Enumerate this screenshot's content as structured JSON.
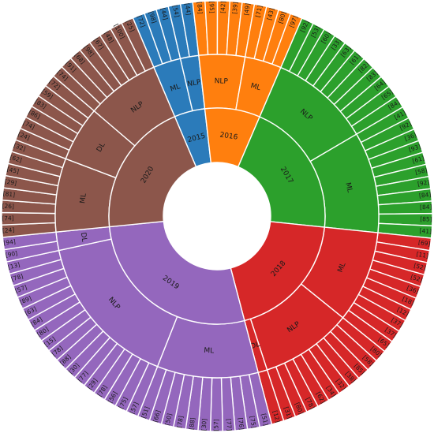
{
  "chart_data": {
    "type": "sunburst",
    "colors": {
      "2015": "#2b7bba",
      "2016": "#ff7f0e",
      "2017": "#2ca02c",
      "2018": "#d62728",
      "2019": "#9467bd",
      "2020": "#8c564b"
    },
    "years": [
      {
        "label": "2015",
        "groups": [
          {
            "label": "ML",
            "items": [
              "[72]",
              "[98]",
              "[44]"
            ]
          },
          {
            "label": "NLP",
            "items": [
              "[54]",
              "[44]"
            ]
          }
        ]
      },
      {
        "label": "2016",
        "groups": [
          {
            "label": "NLP",
            "items": [
              "[84]",
              "[95]",
              "[42]",
              "[39]",
              "[49]"
            ]
          },
          {
            "label": "ML",
            "items": [
              "[71]",
              "[43]",
              "[80]",
              "[97]"
            ]
          }
        ]
      },
      {
        "label": "2017",
        "groups": [
          {
            "label": "NLP",
            "items": [
              "[92]",
              "[53]",
              "[60]",
              "[33]",
              "[63]",
              "[61]",
              "[82]",
              "[83]",
              "[64]",
              "[65]",
              "[84]"
            ]
          },
          {
            "label": "ML",
            "items": [
              "[41]",
              "[92]",
              "[36]",
              "[93]",
              "[61]",
              "[58]",
              "[92]",
              "[84]",
              "[84]",
              "[85]",
              "[41]"
            ]
          }
        ]
      },
      {
        "label": "2018",
        "groups": [
          {
            "label": "ML",
            "items": [
              "[69]",
              "[11]",
              "[52]",
              "[52]",
              "[36]",
              "[18]",
              "[12]",
              "[37]",
              "[37]",
              "[65]"
            ]
          },
          {
            "label": "NLP",
            "items": [
              "[80]",
              "[58]",
              "[85]",
              "[38]",
              "[32]",
              "[34]",
              "[62]",
              "[78]",
              "[80]",
              "[31]"
            ]
          },
          {
            "label": "DL",
            "items": [
              "[12]"
            ]
          }
        ]
      },
      {
        "label": "2019",
        "groups": [
          {
            "label": "ML",
            "items": [
              "[51]",
              "[75]",
              "[76]",
              "[77]",
              "[57]",
              "[30]",
              "[88]",
              "[78]",
              "[50]",
              "[66]",
              "[51]"
            ]
          },
          {
            "label": "NLP",
            "items": [
              "[57]",
              "[75]",
              "[56]",
              "[78]",
              "[29]",
              "[77]",
              "[30]",
              "[88]",
              "[78]",
              "[15]",
              "[80]",
              "[84]",
              "[63]",
              "[89]",
              "[57]",
              "[78]",
              "[13]"
            ]
          },
          {
            "label": "DL",
            "items": [
              "[90]",
              "[94]"
            ]
          }
        ]
      },
      {
        "label": "2020",
        "groups": [
          {
            "label": "ML",
            "items": [
              "[24]",
              "[74]",
              "[26]",
              "[81]",
              "[29]",
              "[45]",
              "[62]",
              "[32]"
            ]
          },
          {
            "label": "DL",
            "items": [
              "[24]",
              "[74]",
              "[86]",
              "[83]",
              "[59]",
              "[72]"
            ]
          },
          {
            "label": "NLP",
            "items": [
              "[74]",
              "[91]",
              "[68]",
              "[98]",
              "[67]",
              "[48]",
              "[100]",
              "[25]"
            ]
          }
        ]
      }
    ]
  }
}
